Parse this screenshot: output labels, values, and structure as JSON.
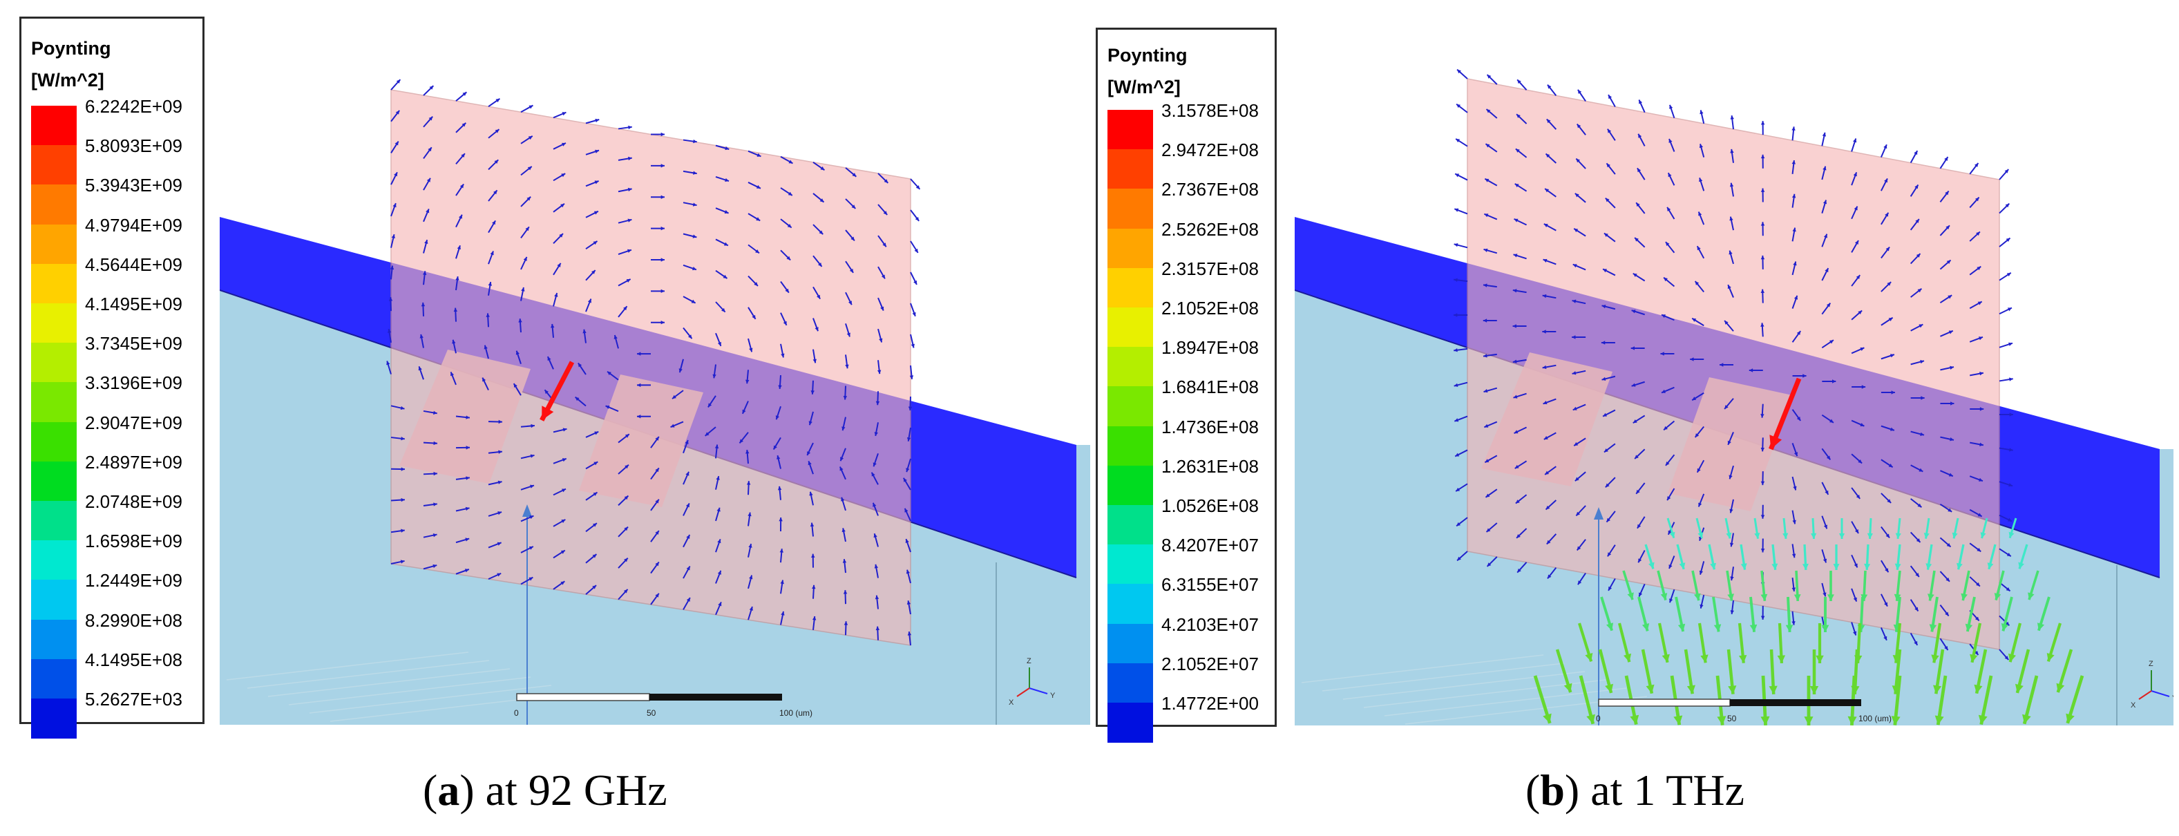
{
  "panels": [
    {
      "legend": {
        "title_line1": "Poynting",
        "title_line2": "[W/m^2]",
        "ticks": [
          "6.2242E+09",
          "5.8093E+09",
          "5.3943E+09",
          "4.9794E+09",
          "4.5644E+09",
          "4.1495E+09",
          "3.7345E+09",
          "3.3196E+09",
          "2.9047E+09",
          "2.4897E+09",
          "2.0748E+09",
          "1.6598E+09",
          "1.2449E+09",
          "8.2990E+08",
          "4.1495E+08",
          "5.2627E+03"
        ]
      },
      "scale_labels": [
        "0",
        "50",
        "100 (um)"
      ],
      "triad_labels": [
        "Z",
        "Y",
        "X"
      ],
      "caption_letter": "a",
      "caption_text": " at 92 GHz"
    },
    {
      "legend": {
        "title_line1": "Poynting",
        "title_line2": "[W/m^2]",
        "ticks": [
          "3.1578E+08",
          "2.9472E+08",
          "2.7367E+08",
          "2.5262E+08",
          "2.3157E+08",
          "2.1052E+08",
          "1.8947E+08",
          "1.6841E+08",
          "1.4736E+08",
          "1.2631E+08",
          "1.0526E+08",
          "8.4207E+07",
          "6.3155E+07",
          "4.2103E+07",
          "2.1052E+07",
          "1.4772E+00"
        ]
      },
      "scale_labels": [
        "0",
        "50",
        "100 (um)"
      ],
      "triad_labels": [
        "Z",
        "Y",
        "X"
      ],
      "caption_letter": "b",
      "caption_text": " at 1 THz"
    }
  ],
  "colorscale": [
    "#ff0000",
    "#ff4000",
    "#ff7a00",
    "#ffa500",
    "#ffd000",
    "#e8f000",
    "#b4ee00",
    "#7ae800",
    "#3ae000",
    "#00dc20",
    "#00e08a",
    "#00e8d0",
    "#00c8f0",
    "#0090f0",
    "#0050e8",
    "#0010e0"
  ],
  "colors": {
    "substrate_top": "#2a2aff",
    "substrate_side": "#a9d3e6",
    "plane": "#f6b5b5",
    "arrow": "#2020cc",
    "highlight_arrow": "#ff1010"
  }
}
